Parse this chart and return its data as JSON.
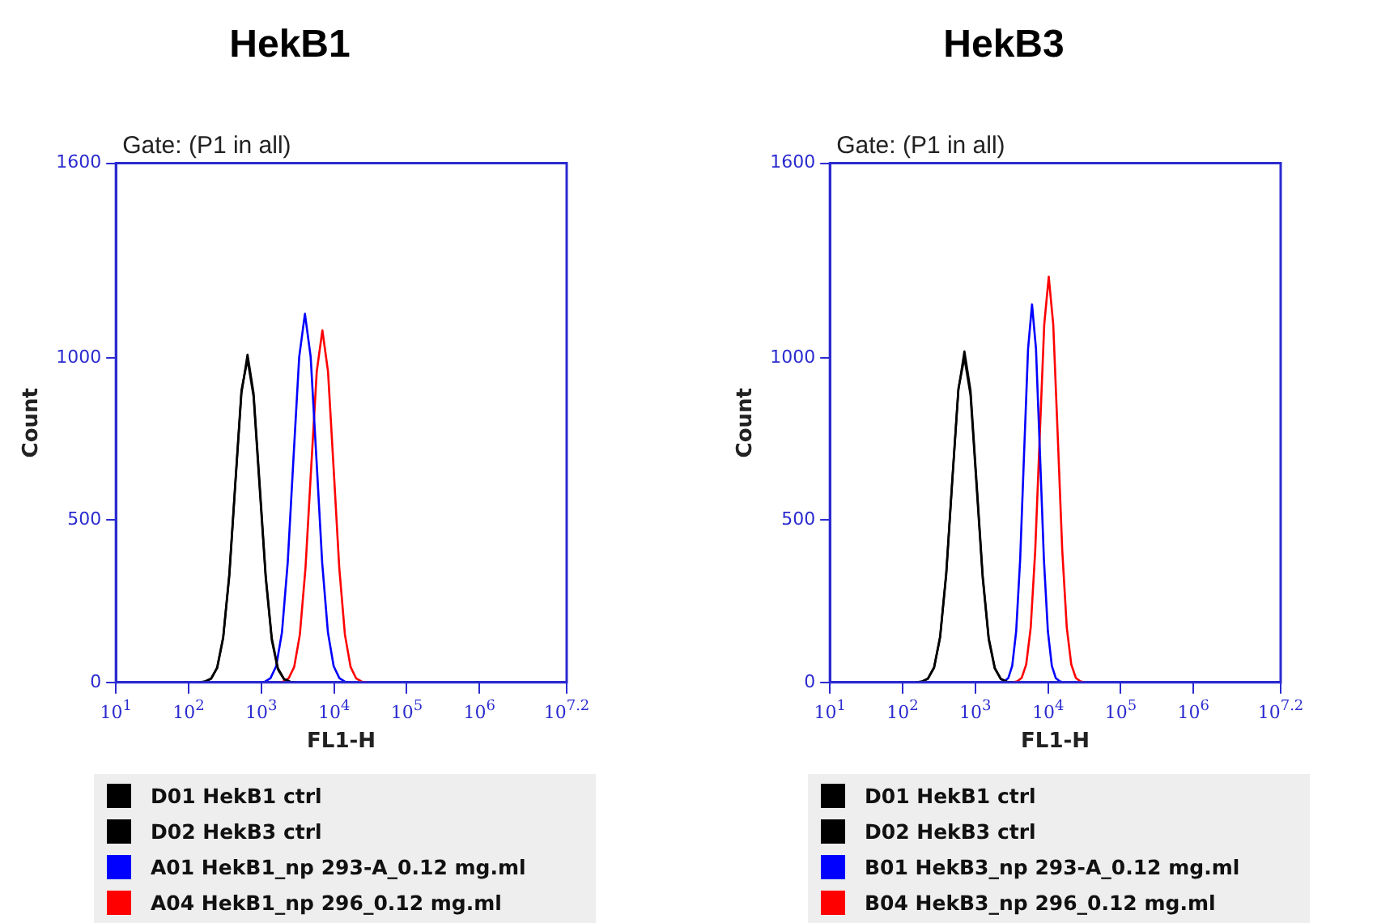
{
  "chart_data": [
    {
      "type": "line",
      "title": "HekB1",
      "annotations": [
        "Gate: (P1 in all)"
      ],
      "xlabel": "FL1-H",
      "ylabel": "Count",
      "log": "x",
      "grid": false,
      "legend": "bottom",
      "marker": "none",
      "line_style": "solid",
      "xlim": [
        10,
        15848932
      ],
      "xticks": [
        {
          "value": 10,
          "label": "10$^{1}$"
        },
        {
          "value": 100,
          "label": "10$^{2}$"
        },
        {
          "value": 1000,
          "label": "10$^{3}$"
        },
        {
          "value": 10000,
          "label": "10$^{4}$"
        },
        {
          "value": 100000,
          "label": "10$^{5}$"
        },
        {
          "value": 1000000,
          "label": "10$^{6}$"
        },
        {
          "value": 15848932,
          "label": "10$^{7.2}$"
        }
      ],
      "ylim": [
        0,
        1600
      ],
      "yticks": [
        0,
        500,
        1000,
        1600
      ],
      "series": [
        {
          "name": "D01 HekB1 ctrl",
          "color": "#000000",
          "x": [
            139,
            168,
            204,
            247,
            299,
            363,
            440,
            533,
            646,
            783,
            948,
            1151,
            1393,
            1690,
            2046,
            2483,
            3006
          ],
          "values": [
            0,
            2,
            11,
            44,
            137,
            328,
            613,
            891,
            1010,
            891,
            613,
            328,
            137,
            44,
            11,
            2,
            0
          ]
        },
        {
          "name": "D02 HekB3 ctrl",
          "color": "#000000",
          "x": [
            139,
            168,
            204,
            247,
            299,
            363,
            440,
            533,
            646,
            783,
            948,
            1151,
            1393,
            1690,
            2046,
            2483,
            3006
          ],
          "values": [
            0,
            3,
            12,
            46,
            140,
            335,
            620,
            900,
            995,
            880,
            600,
            320,
            130,
            40,
            10,
            2,
            0
          ]
        },
        {
          "name": "A01 HekB1_np 293-A_0.12 mg.ml",
          "color": "#0000ff",
          "x": [
            929,
            1114,
            1337,
            1603,
            1923,
            2307,
            2767,
            3319,
            3981,
            4775,
            5728,
            6871,
            8241,
            9886,
            11858,
            14223,
            17061
          ],
          "values": [
            0,
            2,
            13,
            50,
            154,
            369,
            689,
            1003,
            1136,
            1003,
            689,
            369,
            154,
            50,
            13,
            2,
            0
          ]
        },
        {
          "name": "A04 HekB1_np 296_0.12 mg.ml",
          "color": "#ff0000",
          "x": [
            1660,
            1984,
            2371,
            2835,
            3388,
            4050,
            4842,
            5788,
            6918,
            8270,
            9886,
            11817,
            14125,
            16885,
            20184,
            24127,
            28840
          ],
          "values": [
            0,
            2,
            12,
            48,
            147,
            352,
            658,
            958,
            1085,
            958,
            658,
            352,
            147,
            48,
            12,
            2,
            0
          ]
        }
      ]
    },
    {
      "type": "line",
      "title": "HekB3",
      "annotations": [
        "Gate: (P1 in all)"
      ],
      "xlabel": "FL1-H",
      "ylabel": "Count",
      "log": "x",
      "grid": false,
      "legend": "bottom",
      "marker": "none",
      "line_style": "solid",
      "xlim": [
        10,
        15848932
      ],
      "xticks": [
        {
          "value": 10,
          "label": "10$^{1}$"
        },
        {
          "value": 100,
          "label": "10$^{2}$"
        },
        {
          "value": 1000,
          "label": "10$^{3}$"
        },
        {
          "value": 10000,
          "label": "10$^{4}$"
        },
        {
          "value": 100000,
          "label": "10$^{5}$"
        },
        {
          "value": 1000000,
          "label": "10$^{6}$"
        },
        {
          "value": 15848932,
          "label": "10$^{7.2}$"
        }
      ],
      "ylim": [
        0,
        1600
      ],
      "yticks": [
        0,
        500,
        1000,
        1600
      ],
      "series": [
        {
          "name": "D01 HekB1 ctrl",
          "color": "#000000",
          "x": [
            152,
            185,
            223,
            271,
            328,
            398,
            482,
            585,
            708,
            859,
            1040,
            1262,
            1528,
            1854,
            2244,
            2723,
            3296
          ],
          "values": [
            0,
            2,
            11,
            45,
            138,
            331,
            619,
            900,
            1020,
            900,
            619,
            331,
            138,
            45,
            11,
            2,
            0
          ]
        },
        {
          "name": "D02 HekB3 ctrl",
          "color": "#000000",
          "x": [
            152,
            185,
            223,
            271,
            328,
            398,
            482,
            585,
            708,
            859,
            1040,
            1262,
            1528,
            1854,
            2244,
            2723,
            3296
          ],
          "values": [
            0,
            3,
            12,
            47,
            142,
            338,
            625,
            905,
            1000,
            885,
            605,
            322,
            132,
            42,
            10,
            2,
            0
          ]
        },
        {
          "name": "B01 HekB3_np 293-A_0.12 mg.ml",
          "color": "#0000ff",
          "x": [
            2208,
            2503,
            2838,
            3218,
            3648,
            4136,
            4688,
            5316,
            6026,
            6832,
            7745,
            8782,
            9954,
            11286,
            12794,
            14506,
            16444
          ],
          "values": [
            0,
            3,
            13,
            51,
            158,
            378,
            707,
            1028,
            1165,
            1028,
            707,
            378,
            158,
            51,
            13,
            3,
            0
          ]
        },
        {
          "name": "B04 HekB3_np 296_0.12 mg.ml",
          "color": "#ff0000",
          "x": [
            3266,
            3767,
            4345,
            5012,
            5781,
            6668,
            7691,
            8872,
            10233,
            11803,
            13614,
            15704,
            18113,
            20893,
            24099,
            27797,
            32063
          ],
          "values": [
            0,
            3,
            14,
            55,
            169,
            406,
            758,
            1103,
            1250,
            1103,
            758,
            406,
            169,
            55,
            14,
            3,
            0
          ]
        }
      ]
    }
  ]
}
